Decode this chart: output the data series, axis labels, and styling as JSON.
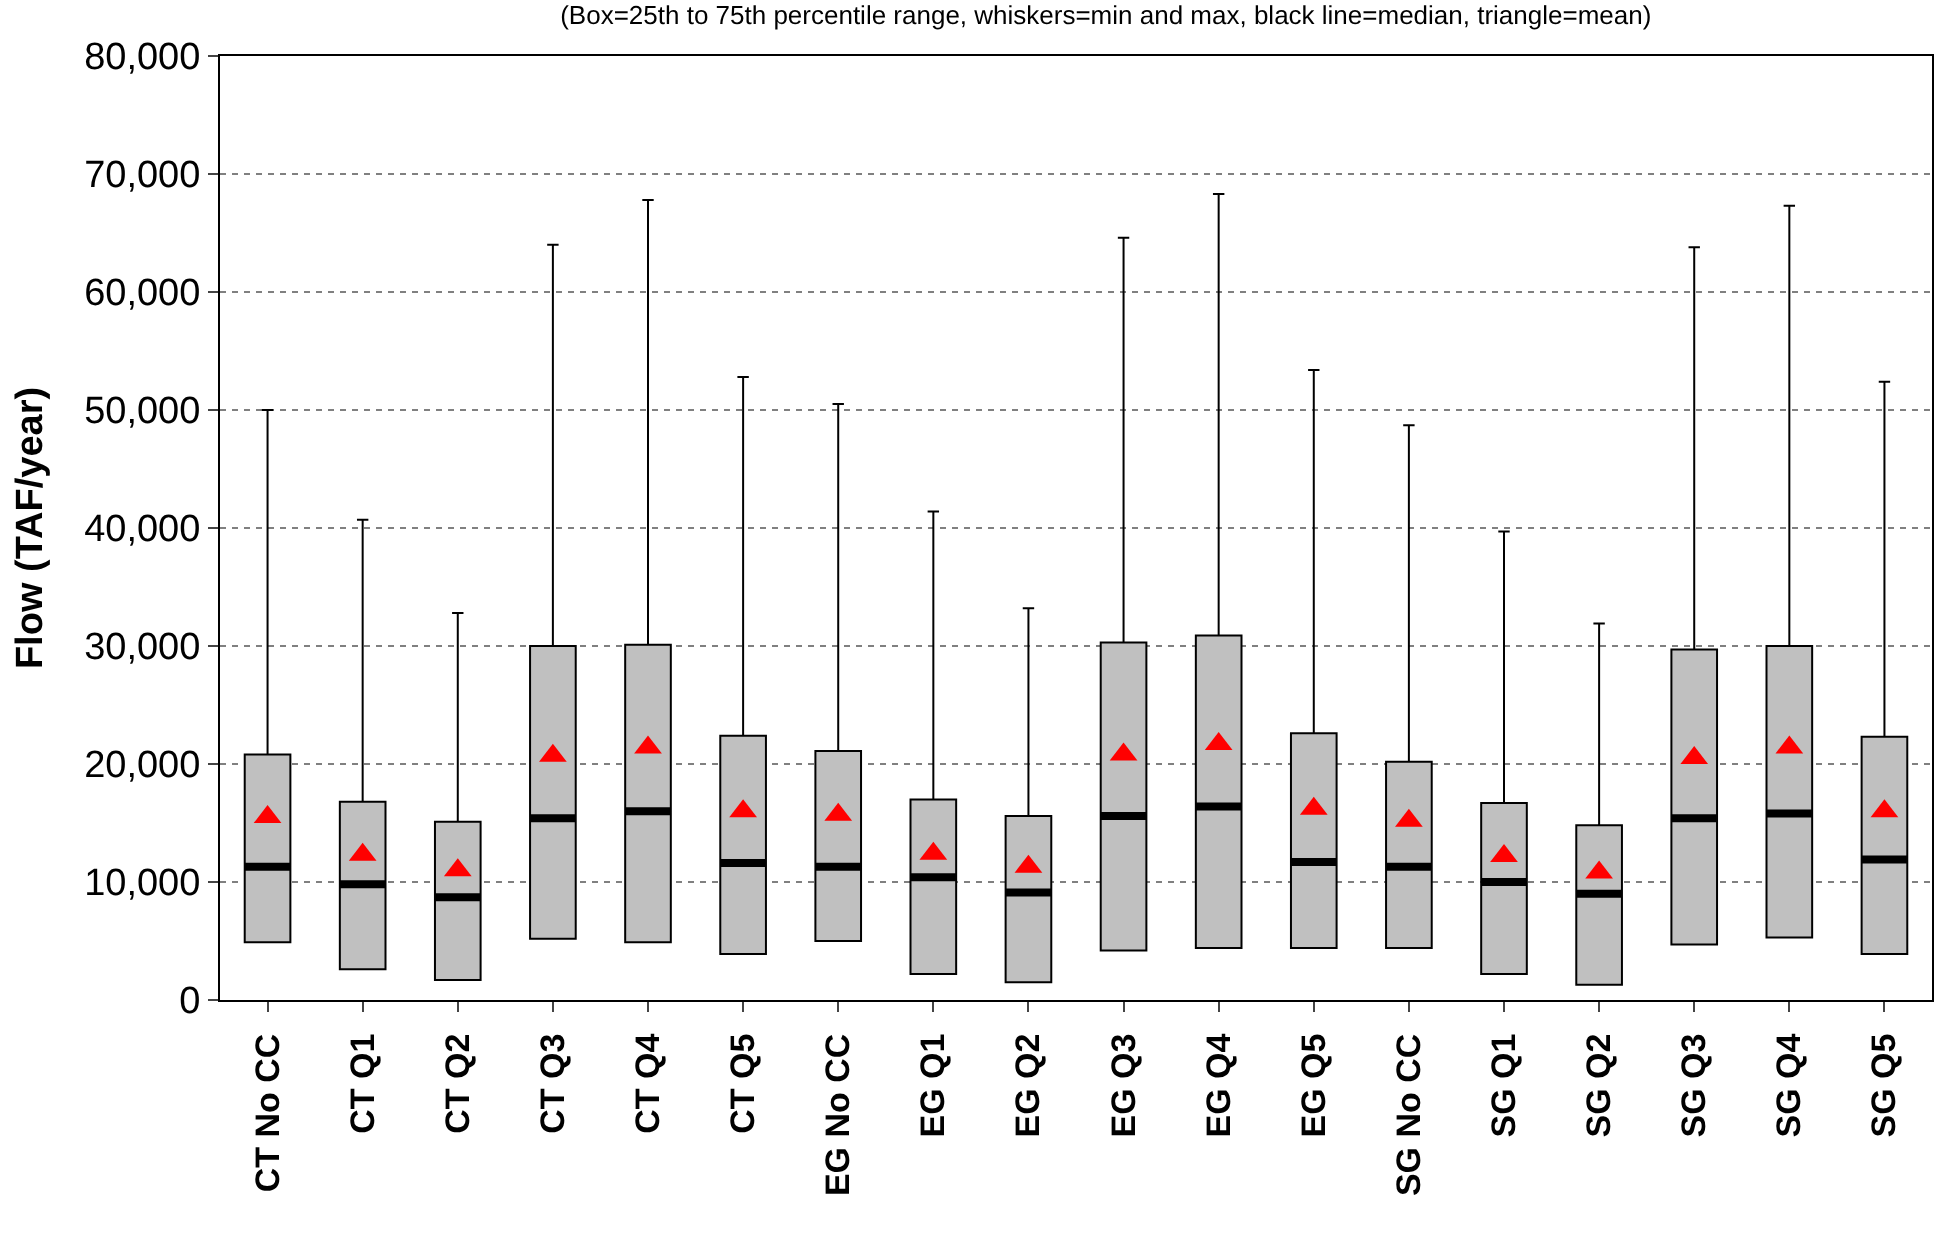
{
  "chart_data": {
    "type": "box",
    "title": "(Box=25th to 75th percentile range, whiskers=min and max, black line=median, triangle=mean)",
    "ylabel": "Flow (TAF/year)",
    "categories": [
      "CT No CC",
      "CT Q1",
      "CT Q2",
      "CT Q3",
      "CT Q4",
      "CT Q5",
      "EG No CC",
      "EG Q1",
      "EG Q2",
      "EG Q3",
      "EG Q4",
      "EG Q5",
      "SG No CC",
      "SG Q1",
      "SG Q2",
      "SG Q3",
      "SG Q4",
      "SG Q5"
    ],
    "series": [
      {
        "color": "#c0c0c0",
        "boxes": [
          {
            "low": 4900,
            "q1": 4900,
            "median": 11300,
            "q3": 20800,
            "high": 50000,
            "mean": 15500
          },
          {
            "low": 2600,
            "q1": 2600,
            "median": 9800,
            "q3": 16800,
            "high": 40700,
            "mean": 12300
          },
          {
            "low": 1700,
            "q1": 1700,
            "median": 8700,
            "q3": 15100,
            "high": 32800,
            "mean": 11000
          },
          {
            "low": 5200,
            "q1": 5200,
            "median": 15400,
            "q3": 30000,
            "high": 64000,
            "mean": 20700
          },
          {
            "low": 4900,
            "q1": 4900,
            "median": 16000,
            "q3": 30100,
            "high": 67800,
            "mean": 21400
          },
          {
            "low": 3900,
            "q1": 3900,
            "median": 11600,
            "q3": 22400,
            "high": 52800,
            "mean": 16000
          },
          {
            "low": 5000,
            "q1": 5000,
            "median": 11300,
            "q3": 21100,
            "high": 50500,
            "mean": 15700
          },
          {
            "low": 2200,
            "q1": 2200,
            "median": 10400,
            "q3": 17000,
            "high": 41400,
            "mean": 12400
          },
          {
            "low": 1500,
            "q1": 1500,
            "median": 9100,
            "q3": 15600,
            "high": 33200,
            "mean": 11300
          },
          {
            "low": 4200,
            "q1": 4200,
            "median": 15600,
            "q3": 30300,
            "high": 64600,
            "mean": 20800
          },
          {
            "low": 4400,
            "q1": 4400,
            "median": 16400,
            "q3": 30900,
            "high": 68300,
            "mean": 21700
          },
          {
            "low": 4400,
            "q1": 4400,
            "median": 11700,
            "q3": 22600,
            "high": 53400,
            "mean": 16200
          },
          {
            "low": 4400,
            "q1": 4400,
            "median": 11300,
            "q3": 20200,
            "high": 48700,
            "mean": 15200
          },
          {
            "low": 2200,
            "q1": 2200,
            "median": 10000,
            "q3": 16700,
            "high": 39700,
            "mean": 12200
          },
          {
            "low": 1300,
            "q1": 1300,
            "median": 9000,
            "q3": 14800,
            "high": 31900,
            "mean": 10800
          },
          {
            "low": 4700,
            "q1": 4700,
            "median": 15400,
            "q3": 29700,
            "high": 63800,
            "mean": 20500
          },
          {
            "low": 5300,
            "q1": 5300,
            "median": 15800,
            "q3": 30000,
            "high": 67300,
            "mean": 21400
          },
          {
            "low": 3900,
            "q1": 3900,
            "median": 11900,
            "q3": 22300,
            "high": 52400,
            "mean": 16000
          }
        ]
      }
    ],
    "ylim": [
      0,
      80000
    ],
    "yticks": [
      {
        "value": 0,
        "label": "0"
      },
      {
        "value": 10000,
        "label": "10,000"
      },
      {
        "value": 20000,
        "label": "20,000"
      },
      {
        "value": 30000,
        "label": "30,000"
      },
      {
        "value": 40000,
        "label": "40,000"
      },
      {
        "value": 50000,
        "label": "50,000"
      },
      {
        "value": 60000,
        "label": "60,000"
      },
      {
        "value": 70000,
        "label": "70,000"
      },
      {
        "value": 80000,
        "label": "80,000"
      }
    ],
    "grid": "y",
    "marker": "triangle"
  }
}
